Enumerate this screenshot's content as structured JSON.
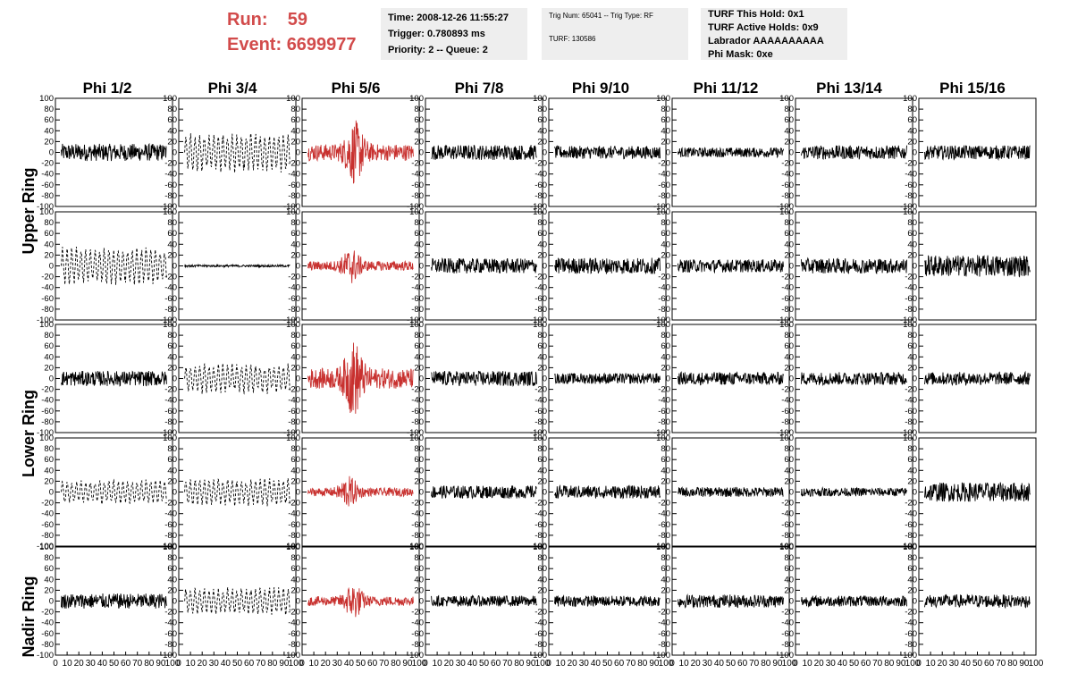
{
  "header": {
    "run_label": "Run:",
    "run_value": "59",
    "event_label": "Event:",
    "event_value": "6699977",
    "run_color": "#d24b4b"
  },
  "info_box_1": {
    "time": "Time: 2008-12-26 11:55:27",
    "trigger": "Trigger: 0.780893 ms",
    "priority": "Priority: 2 -- Queue: 2"
  },
  "info_box_2": {
    "trig": "Trig Num: 65041 -- Trig Type: RF",
    "turf": "TURF: 130586"
  },
  "info_box_3": {
    "hold": "TURF This Hold: 0x1",
    "active": "TURF Active Holds: 0x9",
    "labrador": "Labrador AAAAAAAAAA",
    "phimask": "Phi Mask: 0xe"
  },
  "chart_data": {
    "type": "line",
    "columns": [
      "Phi 1/2",
      "Phi 3/4",
      "Phi 5/6",
      "Phi 7/8",
      "Phi 9/10",
      "Phi 11/12",
      "Phi 13/14",
      "Phi 15/16"
    ],
    "row_groups": [
      "Upper Ring",
      "Lower Ring",
      "Nadir Ring"
    ],
    "panel_rows": 5,
    "ylim": [
      -100,
      100
    ],
    "xlim": [
      0,
      100
    ],
    "y_ticks": [
      -100,
      -80,
      -60,
      -40,
      -20,
      0,
      20,
      40,
      60,
      80,
      100
    ],
    "x_ticks": [
      0,
      10,
      20,
      30,
      40,
      50,
      60,
      70,
      80,
      90,
      100
    ],
    "highlight_column": "Phi 5/6",
    "highlight_color": "#c8312f",
    "trace_color": "#000000",
    "panels": [
      {
        "row": 0,
        "col": 0,
        "amp": 16,
        "style": "solid",
        "pulse": 0
      },
      {
        "row": 0,
        "col": 1,
        "amp": 32,
        "style": "dashed",
        "pulse": 0
      },
      {
        "row": 0,
        "col": 2,
        "amp": 28,
        "style": "red",
        "pulse": 45
      },
      {
        "row": 0,
        "col": 3,
        "amp": 14,
        "style": "solid",
        "pulse": 0
      },
      {
        "row": 0,
        "col": 4,
        "amp": 12,
        "style": "solid",
        "pulse": 0
      },
      {
        "row": 0,
        "col": 5,
        "amp": 9,
        "style": "solid",
        "pulse": 0
      },
      {
        "row": 0,
        "col": 6,
        "amp": 13,
        "style": "solid",
        "pulse": 0
      },
      {
        "row": 0,
        "col": 7,
        "amp": 13,
        "style": "solid",
        "pulse": 0
      },
      {
        "row": 1,
        "col": 0,
        "amp": 30,
        "style": "dashed",
        "pulse": 0
      },
      {
        "row": 1,
        "col": 1,
        "amp": 2,
        "style": "solid",
        "pulse": 0
      },
      {
        "row": 1,
        "col": 2,
        "amp": 16,
        "style": "red",
        "pulse": 42
      },
      {
        "row": 1,
        "col": 3,
        "amp": 14,
        "style": "solid",
        "pulse": 0
      },
      {
        "row": 1,
        "col": 4,
        "amp": 15,
        "style": "solid",
        "pulse": 0
      },
      {
        "row": 1,
        "col": 5,
        "amp": 12,
        "style": "solid",
        "pulse": 0
      },
      {
        "row": 1,
        "col": 6,
        "amp": 14,
        "style": "solid",
        "pulse": 0
      },
      {
        "row": 1,
        "col": 7,
        "amp": 20,
        "style": "solid",
        "pulse": 0
      },
      {
        "row": 2,
        "col": 0,
        "amp": 14,
        "style": "solid",
        "pulse": 0
      },
      {
        "row": 2,
        "col": 1,
        "amp": 24,
        "style": "dashed",
        "pulse": 0
      },
      {
        "row": 2,
        "col": 2,
        "amp": 34,
        "style": "red",
        "pulse": 44
      },
      {
        "row": 2,
        "col": 3,
        "amp": 14,
        "style": "solid",
        "pulse": 0
      },
      {
        "row": 2,
        "col": 4,
        "amp": 10,
        "style": "solid",
        "pulse": 0
      },
      {
        "row": 2,
        "col": 5,
        "amp": 12,
        "style": "solid",
        "pulse": 0
      },
      {
        "row": 2,
        "col": 6,
        "amp": 12,
        "style": "solid",
        "pulse": 0
      },
      {
        "row": 2,
        "col": 7,
        "amp": 12,
        "style": "solid",
        "pulse": 0
      },
      {
        "row": 3,
        "col": 0,
        "amp": 20,
        "style": "dashed",
        "pulse": 0
      },
      {
        "row": 3,
        "col": 1,
        "amp": 22,
        "style": "dashed",
        "pulse": 0
      },
      {
        "row": 3,
        "col": 2,
        "amp": 14,
        "style": "red",
        "pulse": 40
      },
      {
        "row": 3,
        "col": 3,
        "amp": 12,
        "style": "solid",
        "pulse": 0
      },
      {
        "row": 3,
        "col": 4,
        "amp": 12,
        "style": "solid",
        "pulse": 0
      },
      {
        "row": 3,
        "col": 5,
        "amp": 9,
        "style": "solid",
        "pulse": 0
      },
      {
        "row": 3,
        "col": 6,
        "amp": 8,
        "style": "solid",
        "pulse": 0
      },
      {
        "row": 3,
        "col": 7,
        "amp": 18,
        "style": "solid",
        "pulse": 0
      },
      {
        "row": 4,
        "col": 0,
        "amp": 14,
        "style": "solid",
        "pulse": 0
      },
      {
        "row": 4,
        "col": 1,
        "amp": 22,
        "style": "dashed",
        "pulse": 0
      },
      {
        "row": 4,
        "col": 2,
        "amp": 16,
        "style": "red",
        "pulse": 44
      },
      {
        "row": 4,
        "col": 3,
        "amp": 10,
        "style": "solid",
        "pulse": 0
      },
      {
        "row": 4,
        "col": 4,
        "amp": 10,
        "style": "solid",
        "pulse": 0
      },
      {
        "row": 4,
        "col": 5,
        "amp": 12,
        "style": "solid",
        "pulse": 0
      },
      {
        "row": 4,
        "col": 6,
        "amp": 10,
        "style": "solid",
        "pulse": 0
      },
      {
        "row": 4,
        "col": 7,
        "amp": 12,
        "style": "solid",
        "pulse": 0
      }
    ]
  }
}
